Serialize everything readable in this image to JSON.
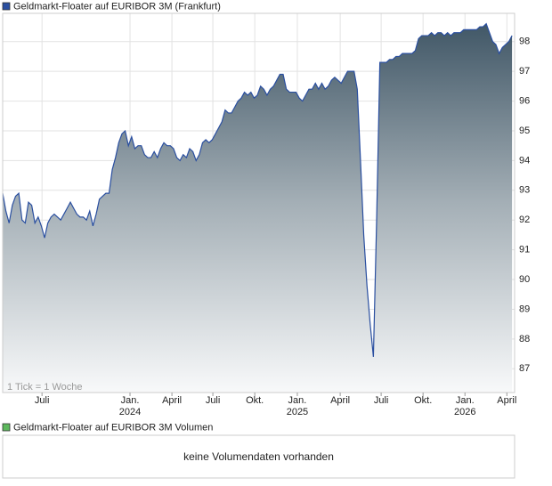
{
  "chart_data": {
    "type": "area",
    "series": [
      {
        "name": "Geldmarkt-Floater auf EURIBOR 3M (Frankfurt)",
        "color": "#2a4fa0",
        "values": [
          92.9,
          92.3,
          91.9,
          92.5,
          92.8,
          92.9,
          92.0,
          91.9,
          92.6,
          92.5,
          91.9,
          92.1,
          91.8,
          91.4,
          91.9,
          92.1,
          92.2,
          92.1,
          92.0,
          92.2,
          92.4,
          92.6,
          92.4,
          92.2,
          92.1,
          92.1,
          92.0,
          92.3,
          91.8,
          92.2,
          92.7,
          92.8,
          92.9,
          92.9,
          93.7,
          94.1,
          94.6,
          94.9,
          95.0,
          94.5,
          94.8,
          94.4,
          94.5,
          94.5,
          94.2,
          94.1,
          94.1,
          94.3,
          94.1,
          94.4,
          94.6,
          94.5,
          94.5,
          94.4,
          94.1,
          94.0,
          94.2,
          94.1,
          94.4,
          94.3,
          94.0,
          94.2,
          94.6,
          94.7,
          94.6,
          94.7,
          94.9,
          95.1,
          95.3,
          95.7,
          95.6,
          95.6,
          95.8,
          96.0,
          96.1,
          96.3,
          96.2,
          96.3,
          96.1,
          96.2,
          96.5,
          96.4,
          96.2,
          96.4,
          96.5,
          96.7,
          96.9,
          96.9,
          96.4,
          96.3,
          96.3,
          96.3,
          96.1,
          96.0,
          96.2,
          96.4,
          96.4,
          96.6,
          96.4,
          96.6,
          96.4,
          96.5,
          96.7,
          96.8,
          96.7,
          96.6,
          96.8,
          97.0,
          97.0,
          97.0,
          96.4,
          94.0,
          91.5,
          89.8,
          88.5,
          87.4,
          92.0,
          97.3,
          97.3,
          97.3,
          97.4,
          97.4,
          97.5,
          97.5,
          97.6,
          97.6,
          97.6,
          97.6,
          97.7,
          98.1,
          98.2,
          98.2,
          98.2,
          98.3,
          98.2,
          98.3,
          98.3,
          98.2,
          98.3,
          98.2,
          98.3,
          98.3,
          98.3,
          98.4,
          98.4,
          98.4,
          98.4,
          98.4,
          98.5,
          98.5,
          98.6,
          98.3,
          98.0,
          97.9,
          97.6,
          97.8,
          97.9,
          98.0,
          98.2
        ]
      }
    ],
    "xlim": [
      0,
      158.8
    ],
    "xticks": [
      {
        "value": 12.2,
        "label": "Juli"
      },
      {
        "value": 39.5,
        "label": "Jan."
      },
      {
        "value": 52.5,
        "label": "April"
      },
      {
        "value": 65.2,
        "label": "Juli"
      },
      {
        "value": 78.2,
        "label": "Okt."
      },
      {
        "value": 91.4,
        "label": "Jan."
      },
      {
        "value": 104.7,
        "label": "April"
      },
      {
        "value": 117.4,
        "label": "Juli"
      },
      {
        "value": 130.4,
        "label": "Okt."
      },
      {
        "value": 143.4,
        "label": "Jan."
      },
      {
        "value": 156.4,
        "label": "April"
      }
    ],
    "x_year_labels": [
      {
        "value": 39.5,
        "label": "2024"
      },
      {
        "value": 91.4,
        "label": "2025"
      },
      {
        "value": 143.4,
        "label": "2026"
      }
    ],
    "ylim": [
      86.2,
      98.95
    ],
    "yticks": [
      87,
      88,
      89,
      90,
      91,
      92,
      93,
      94,
      95,
      96,
      97,
      98
    ],
    "grid": true,
    "annotation": "1 Tick = 1 Woche"
  },
  "volume_panel": {
    "legend": "Geldmarkt-Floater auf EURIBOR 3M Volumen",
    "legend_color": "#5cb85c",
    "message": "keine Volumendaten vorhanden"
  }
}
